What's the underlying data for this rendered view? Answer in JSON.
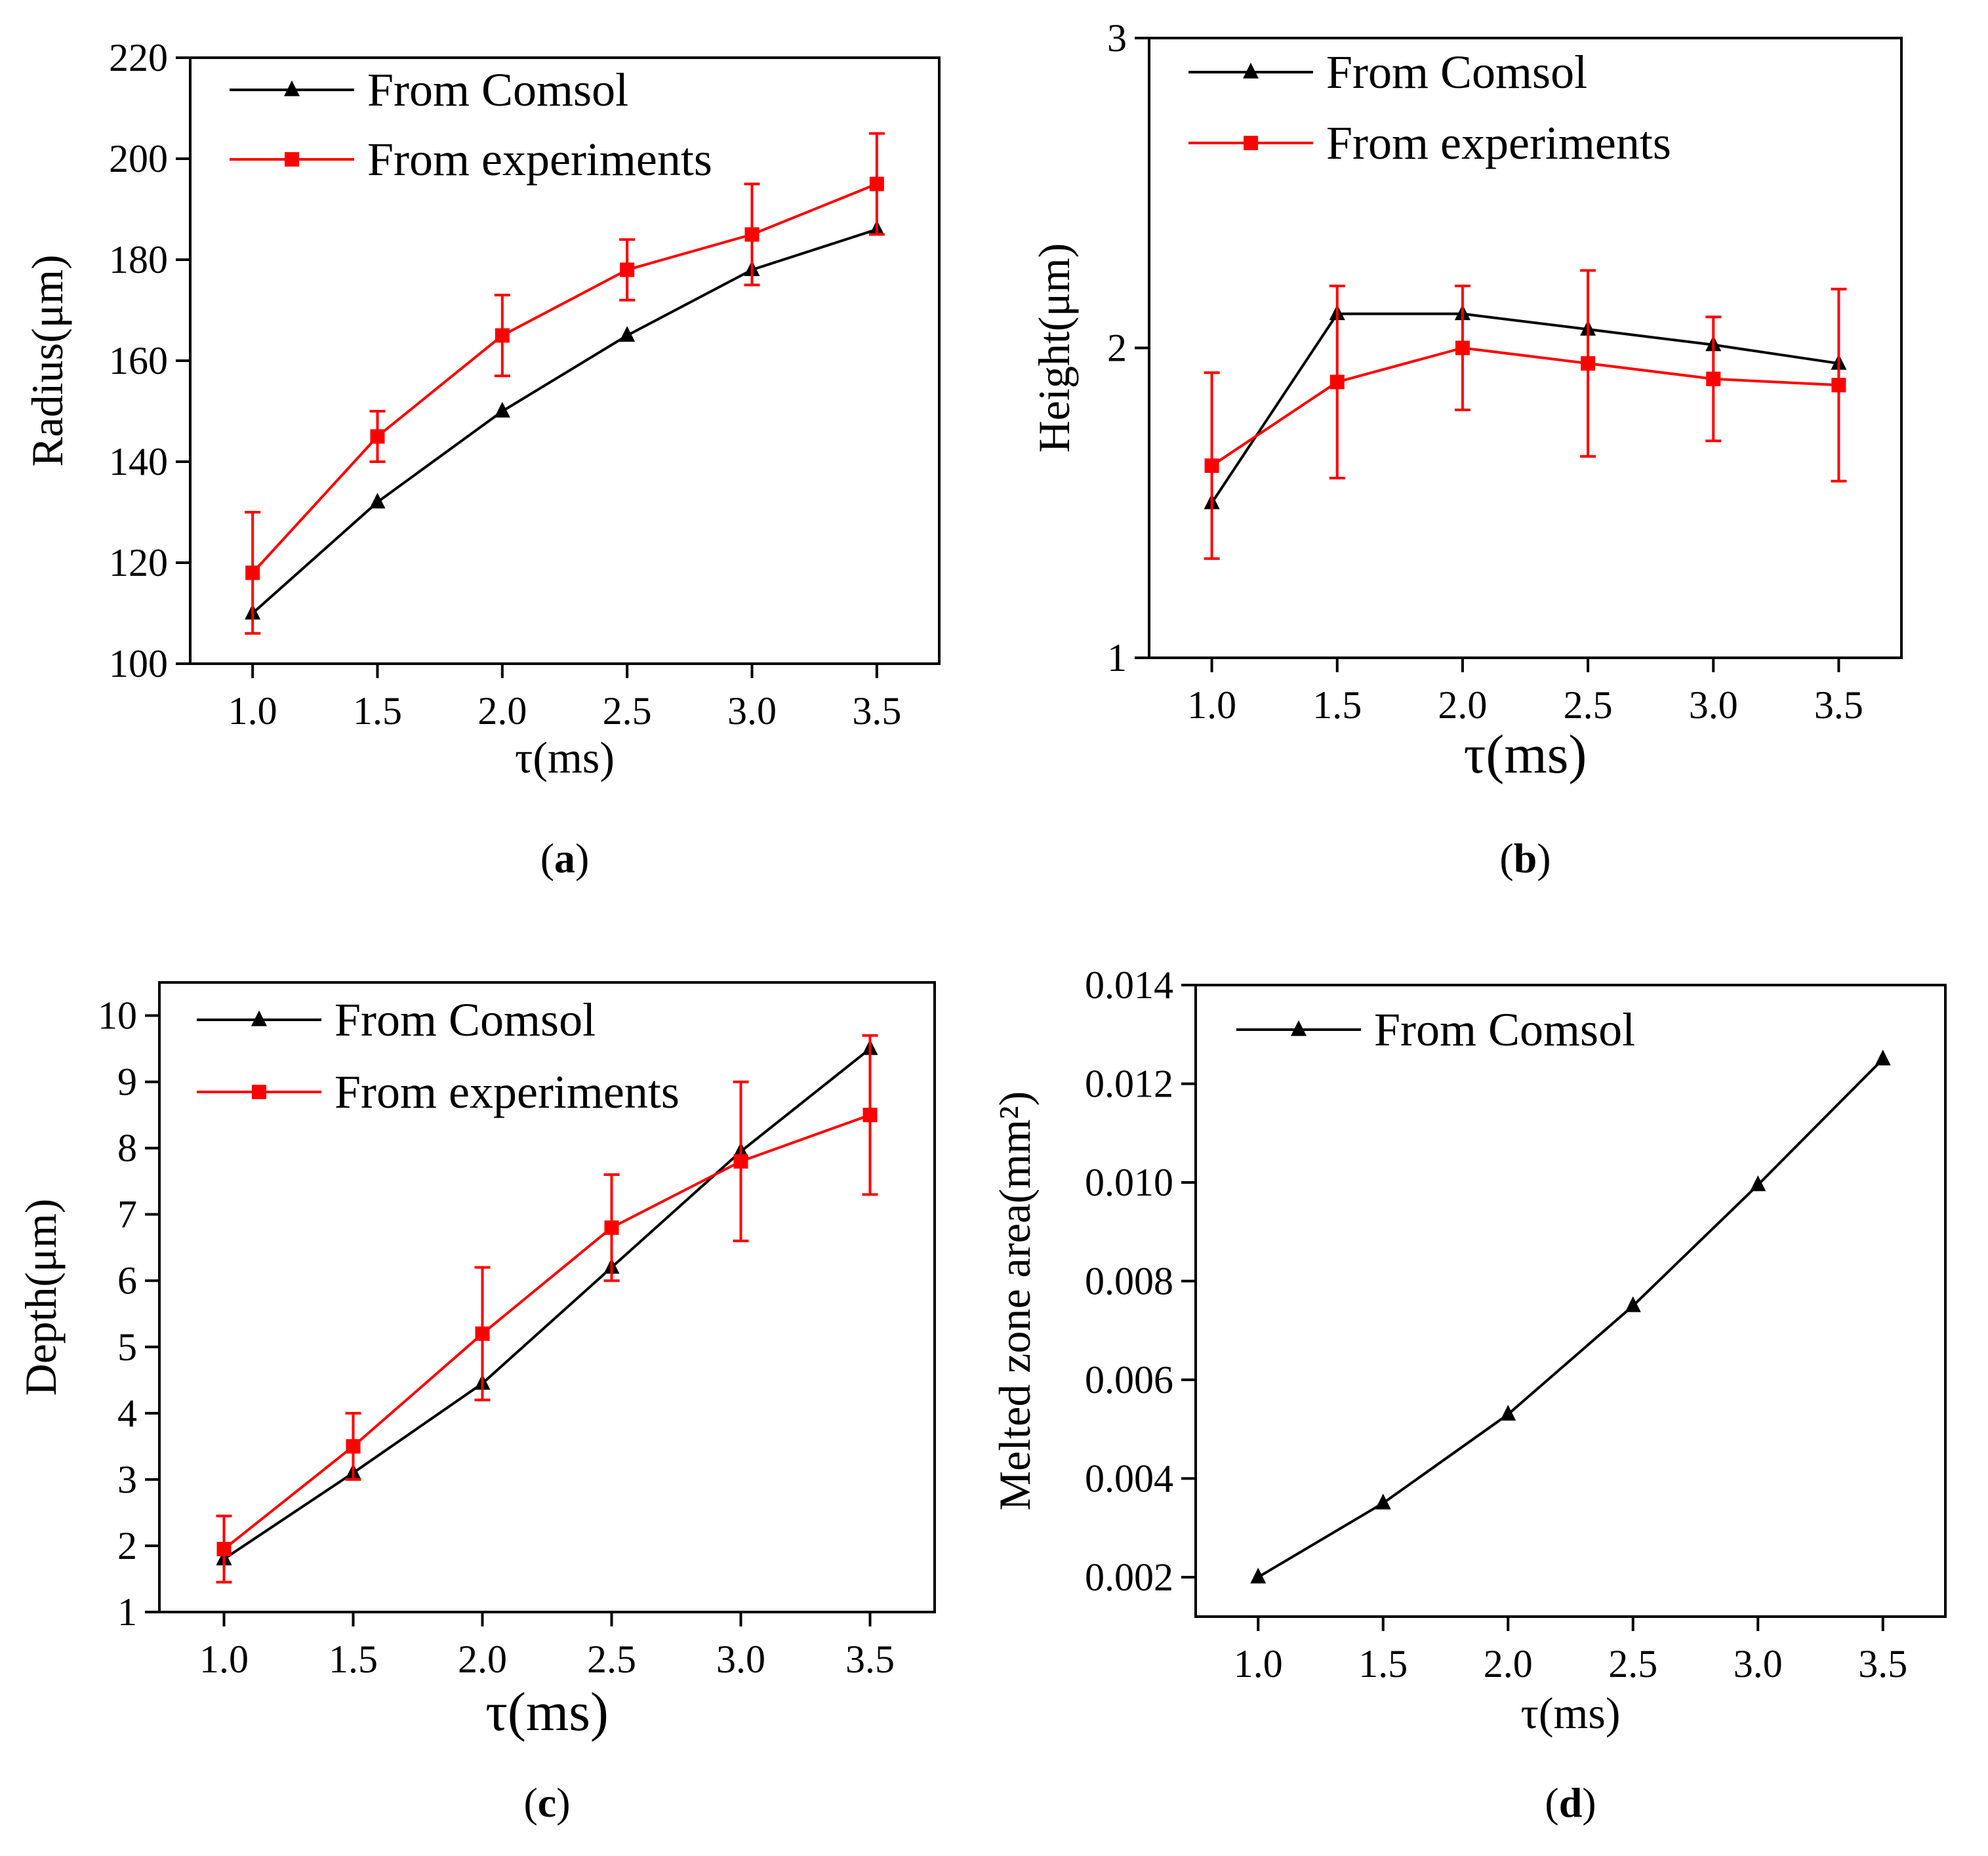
{
  "colors": {
    "comsol": "#000000",
    "experiments": "#ff0000"
  },
  "chart_data": [
    {
      "id": "a",
      "type": "line",
      "panel_label": "a",
      "xlabel": "τ(ms)",
      "ylabel": "Radius(μm)",
      "x": [
        1.0,
        1.5,
        2.0,
        2.5,
        3.0,
        3.5
      ],
      "xticks": [
        "1.0",
        "1.5",
        "2.0",
        "2.5",
        "3.0",
        "3.5"
      ],
      "xlim": [
        0.75,
        3.75
      ],
      "ylim": [
        100,
        220
      ],
      "yticks": [
        "100",
        "120",
        "140",
        "160",
        "180",
        "200",
        "220"
      ],
      "series": [
        {
          "name": "From Comsol",
          "marker": "triangle",
          "color": "#000000",
          "values": [
            110,
            132,
            150,
            165,
            178,
            186
          ]
        },
        {
          "name": "From experiments",
          "marker": "square",
          "color": "#ff0000",
          "values": [
            118,
            145,
            165,
            178,
            185,
            195
          ],
          "errors": [
            12,
            5,
            8,
            6,
            10,
            10
          ]
        }
      ]
    },
    {
      "id": "b",
      "type": "line",
      "panel_label": "b",
      "xlabel": "τ(ms)",
      "ylabel": "Height(μm)",
      "x": [
        1.0,
        1.5,
        2.0,
        2.5,
        3.0,
        3.5
      ],
      "xticks": [
        "1.0",
        "1.5",
        "2.0",
        "2.5",
        "3.0",
        "3.5"
      ],
      "xlim": [
        0.75,
        3.75
      ],
      "ylim": [
        1,
        3
      ],
      "yticks": [
        "1",
        "2",
        "3"
      ],
      "series": [
        {
          "name": "From Comsol",
          "marker": "triangle",
          "color": "#000000",
          "values": [
            1.5,
            2.11,
            2.11,
            2.06,
            2.01,
            1.95
          ]
        },
        {
          "name": "From experiments",
          "marker": "square",
          "color": "#ff0000",
          "values": [
            1.62,
            1.89,
            2.0,
            1.95,
            1.9,
            1.88
          ],
          "errors": [
            0.3,
            0.31,
            0.2,
            0.3,
            0.2,
            0.31
          ]
        }
      ]
    },
    {
      "id": "c",
      "type": "line",
      "panel_label": "c",
      "xlabel": "τ(ms)",
      "ylabel": "Depth(μm)",
      "x": [
        1.0,
        1.5,
        2.0,
        2.5,
        3.0,
        3.5
      ],
      "xticks": [
        "1.0",
        "1.5",
        "2.0",
        "2.5",
        "3.0",
        "3.5"
      ],
      "xlim": [
        0.75,
        3.75
      ],
      "ylim": [
        1,
        10.5
      ],
      "yticks": [
        "1",
        "2",
        "3",
        "4",
        "5",
        "6",
        "7",
        "8",
        "9",
        "10"
      ],
      "series": [
        {
          "name": "From Comsol",
          "marker": "triangle",
          "color": "#000000",
          "values": [
            1.8,
            3.1,
            4.45,
            6.2,
            7.95,
            9.5
          ]
        },
        {
          "name": "From experiments",
          "marker": "square",
          "color": "#ff0000",
          "values": [
            1.95,
            3.5,
            5.2,
            6.8,
            7.8,
            8.5
          ],
          "errors": [
            0.5,
            0.5,
            1.0,
            0.8,
            1.2,
            1.2
          ]
        }
      ]
    },
    {
      "id": "d",
      "type": "line",
      "panel_label": "d",
      "xlabel": "τ(ms)",
      "ylabel": "Melted zone area(mm²)",
      "x": [
        1.0,
        1.5,
        2.0,
        2.5,
        3.0,
        3.5
      ],
      "xticks": [
        "1.0",
        "1.5",
        "2.0",
        "2.5",
        "3.0",
        "3.5"
      ],
      "xlim": [
        0.75,
        3.75
      ],
      "ylim": [
        0.0012,
        0.014
      ],
      "yticks": [
        "0.002",
        "0.004",
        "0.006",
        "0.008",
        "0.010",
        "0.012",
        "0.014"
      ],
      "series": [
        {
          "name": "From Comsol",
          "marker": "triangle",
          "color": "#000000",
          "values": [
            0.002,
            0.0035,
            0.0053,
            0.0075,
            0.00995,
            0.0125
          ]
        }
      ]
    }
  ]
}
